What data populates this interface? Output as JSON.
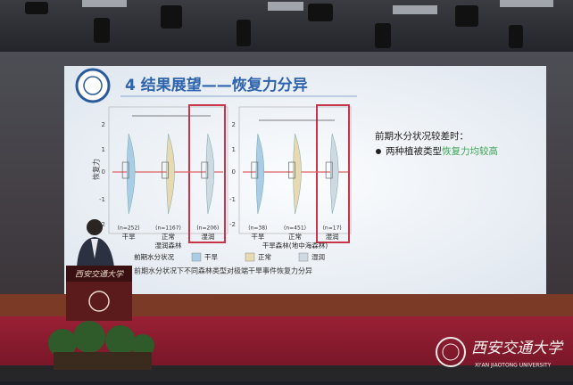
{
  "slide": {
    "title": "4 结果展望——恢复力分异",
    "note_heading": "前期水分状况较差时：",
    "bullet": {
      "text": "两种植被类型",
      "highlight": "恢复力均较高"
    },
    "chart": {
      "y_label": "恢复力",
      "yticks": [
        "2",
        "1",
        "0",
        "-1",
        "-2"
      ],
      "panels": [
        {
          "group": "湿润森林",
          "categories": [
            "干旱",
            "正常",
            "湿润"
          ],
          "n": [
            "(n=252)",
            "(n=1167)",
            "(n=206)"
          ]
        },
        {
          "group": "干旱森林(地中海森林)",
          "categories": [
            "干旱",
            "正常",
            "湿润"
          ],
          "n": [
            "(n=38)",
            "(n=451)",
            "(n=17)"
          ]
        }
      ],
      "legend": {
        "title": "前期水分状况",
        "items": [
          "干旱",
          "正常",
          "湿润"
        ]
      },
      "caption": "前期水分状况下不同森林类型对极端干旱事件恢复力分异"
    }
  },
  "podium": {
    "name": "西安交通大学"
  },
  "logo": {
    "name": "西安交通大学",
    "english": "XI'AN JIAOTONG UNIVERSITY"
  }
}
